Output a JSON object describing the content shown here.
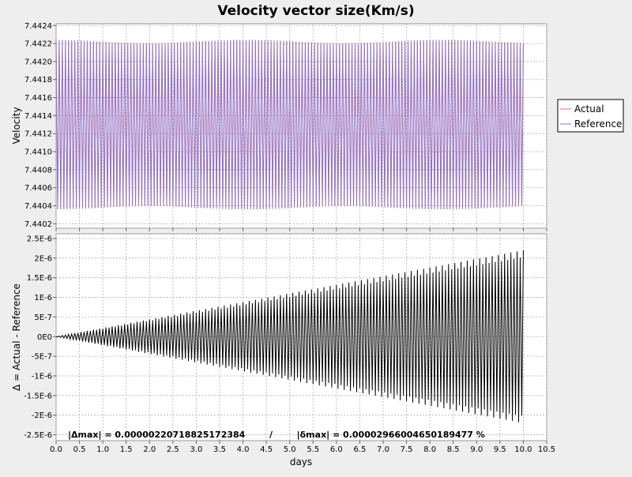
{
  "chart_data": {
    "type": "line",
    "title": "Velocity vector size(Km/s)",
    "xlabel": "days",
    "x_ticks": [
      "0.0",
      "0.5",
      "1.0",
      "1.5",
      "2.0",
      "2.5",
      "3.0",
      "3.5",
      "4.0",
      "4.5",
      "5.0",
      "5.5",
      "6.0",
      "6.5",
      "7.0",
      "7.5",
      "8.0",
      "8.5",
      "9.0",
      "9.5",
      "10.0",
      "10.5"
    ],
    "xlim": [
      0.0,
      10.5
    ],
    "grid": true,
    "legend_position": "right",
    "panels": [
      {
        "ylabel": "Velocity",
        "ylim": [
          7.44015,
          7.44242
        ],
        "y_ticks": [
          "7.4402",
          "7.4404",
          "7.4406",
          "7.4408",
          "7.4410",
          "7.4412",
          "7.4414",
          "7.4416",
          "7.4418",
          "7.4420",
          "7.4422",
          "7.4424"
        ],
        "series": [
          {
            "name": "Actual",
            "color": "#ff6666",
            "oscillation": {
              "x_start": 0.0,
              "x_end": 10.0,
              "cycles": 150,
              "min": 7.44036,
              "max": 7.44224
            }
          },
          {
            "name": "Reference",
            "color": "#7777dd",
            "oscillation": {
              "x_start": 0.0,
              "x_end": 10.0,
              "cycles": 150,
              "min": 7.44036,
              "max": 7.44224
            }
          }
        ]
      },
      {
        "ylabel": "Δ = Actual - Reference",
        "ylim": [
          -2.65e-06,
          2.62e-06
        ],
        "y_ticks": [
          "-2.5E-6",
          "-2E-6",
          "-1.5E-6",
          "-1E-6",
          "-5E-7",
          "0E0",
          "5E-7",
          "1E-6",
          "1.5E-6",
          "2E-6",
          "2.5E-6"
        ],
        "series": [
          {
            "name": "",
            "color": "#000000",
            "oscillation": {
              "x_start": 0.0,
              "x_end": 10.0,
              "cycles": 150,
              "envelope_start": 0.0,
              "envelope_end": 2.2e-06
            }
          }
        ],
        "annotation": "|Δmax| = 0.00000220718825172384        /        |δmax| = 0.00002966004650189477 %"
      }
    ]
  }
}
